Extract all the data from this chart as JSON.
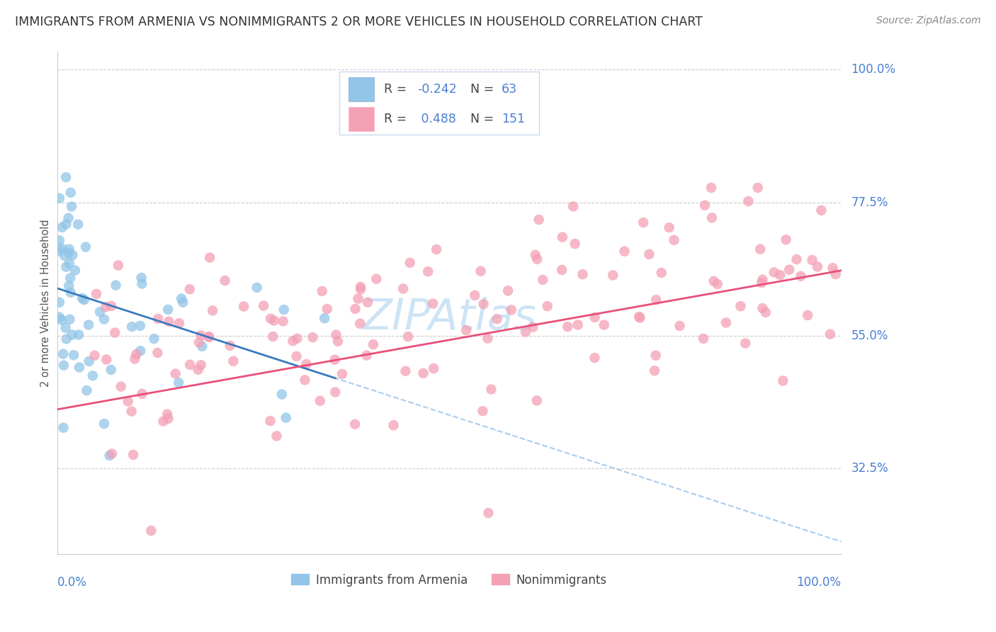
{
  "title": "IMMIGRANTS FROM ARMENIA VS NONIMMIGRANTS 2 OR MORE VEHICLES IN HOUSEHOLD CORRELATION CHART",
  "source": "Source: ZipAtlas.com",
  "ylabel": "2 or more Vehicles in Household",
  "legend_label1": "Immigrants from Armenia",
  "legend_label2": "Nonimmigrants",
  "r1": -0.242,
  "n1": 63,
  "r2": 0.488,
  "n2": 151,
  "color1": "#92c5e8",
  "color2": "#f4a0b5",
  "line_color1": "#3a7abf",
  "line_color2": "#e8507a",
  "dash_color": "#aaccee",
  "text_blue": "#4a7fd4",
  "text_dark": "#444444",
  "background_color": "#ffffff",
  "watermark_color": "#cde4f5",
  "ytick_values": [
    0.325,
    0.55,
    0.775,
    1.0
  ],
  "ytick_labels": [
    "32.5%",
    "55.0%",
    "77.5%",
    "100.0%"
  ],
  "xmin": 0.0,
  "xmax": 1.0,
  "ymin": 0.18,
  "ymax": 1.03
}
